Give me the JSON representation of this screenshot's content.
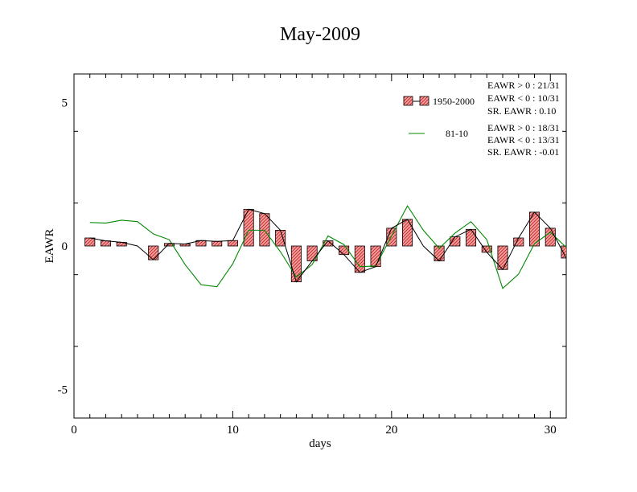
{
  "chart_data": {
    "type": "bar",
    "title": "May-2009",
    "xlabel": "days",
    "ylabel": "EAWR",
    "xlim": [
      0,
      31
    ],
    "ylim": [
      -6,
      6
    ],
    "x_ticks": [
      0,
      10,
      20,
      30
    ],
    "y_ticks": [
      -5,
      0,
      5
    ],
    "grid": false,
    "legend_position": "top-right",
    "x": [
      1,
      2,
      3,
      4,
      5,
      6,
      7,
      8,
      9,
      10,
      11,
      12,
      13,
      14,
      15,
      16,
      17,
      18,
      19,
      20,
      21,
      22,
      23,
      24,
      25,
      26,
      27,
      28,
      29,
      30,
      31
    ],
    "series": [
      {
        "name": "1950-2000",
        "style": "bars-with-line",
        "color": "#e06060",
        "line_color": "#000000",
        "values": [
          0.28,
          0.18,
          0.13,
          0.0,
          -0.48,
          0.09,
          0.07,
          0.19,
          0.16,
          0.19,
          1.28,
          1.13,
          0.55,
          -1.25,
          -0.52,
          0.18,
          -0.3,
          -0.92,
          -0.72,
          0.62,
          0.93,
          0.0,
          -0.52,
          0.32,
          0.58,
          -0.22,
          -0.82,
          0.28,
          1.18,
          0.62,
          -0.42
        ]
      },
      {
        "name": "81-10",
        "style": "line",
        "color": "#008800",
        "values": [
          0.82,
          0.8,
          0.9,
          0.85,
          0.42,
          0.22,
          -0.65,
          -1.35,
          -1.42,
          -0.62,
          0.55,
          0.55,
          -0.2,
          -1.08,
          -0.65,
          0.35,
          0.05,
          -0.72,
          -0.7,
          0.35,
          1.4,
          0.55,
          -0.08,
          0.45,
          0.85,
          0.22,
          -1.48,
          -0.98,
          0.08,
          0.48,
          -0.05
        ]
      }
    ],
    "stats": {
      "group_1950_2000": [
        "EAWR > 0 : 21/31",
        "EAWR < 0 : 10/31",
        "SR. EAWR :  0.10"
      ],
      "group_81_10": [
        "EAWR > 0 : 18/31",
        "EAWR < 0 : 13/31",
        "SR. EAWR : -0.01"
      ]
    }
  }
}
